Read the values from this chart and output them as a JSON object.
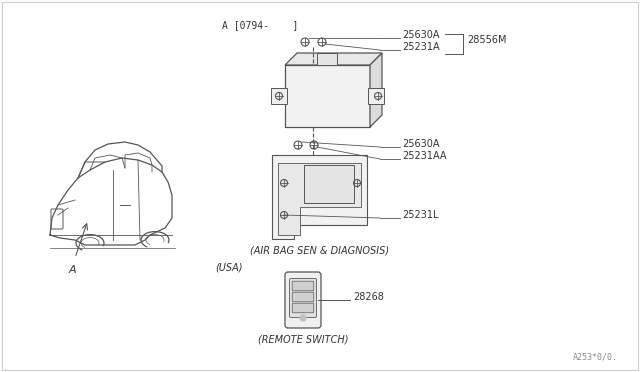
{
  "bg_color": "#FFFFFF",
  "border_color": "#CCCCCC",
  "line_color": "#555555",
  "text_color": "#333333",
  "diagram_ref": "A [0794-    ]",
  "label_A": "A",
  "watermark": "A253*0/0.",
  "parts": {
    "label_25630A_top": "25630A",
    "label_25231A": "25231A",
    "label_28556M": "28556M",
    "label_25630A_bot": "25630A",
    "label_25231AA": "25231AA",
    "label_25231L": "25231L",
    "label_airbag": "(AIR BAG SEN & DIAGNOSIS)",
    "label_usa": "(USA)",
    "label_28268": "28268",
    "label_remote": "(REMOTE SWITCH)"
  }
}
